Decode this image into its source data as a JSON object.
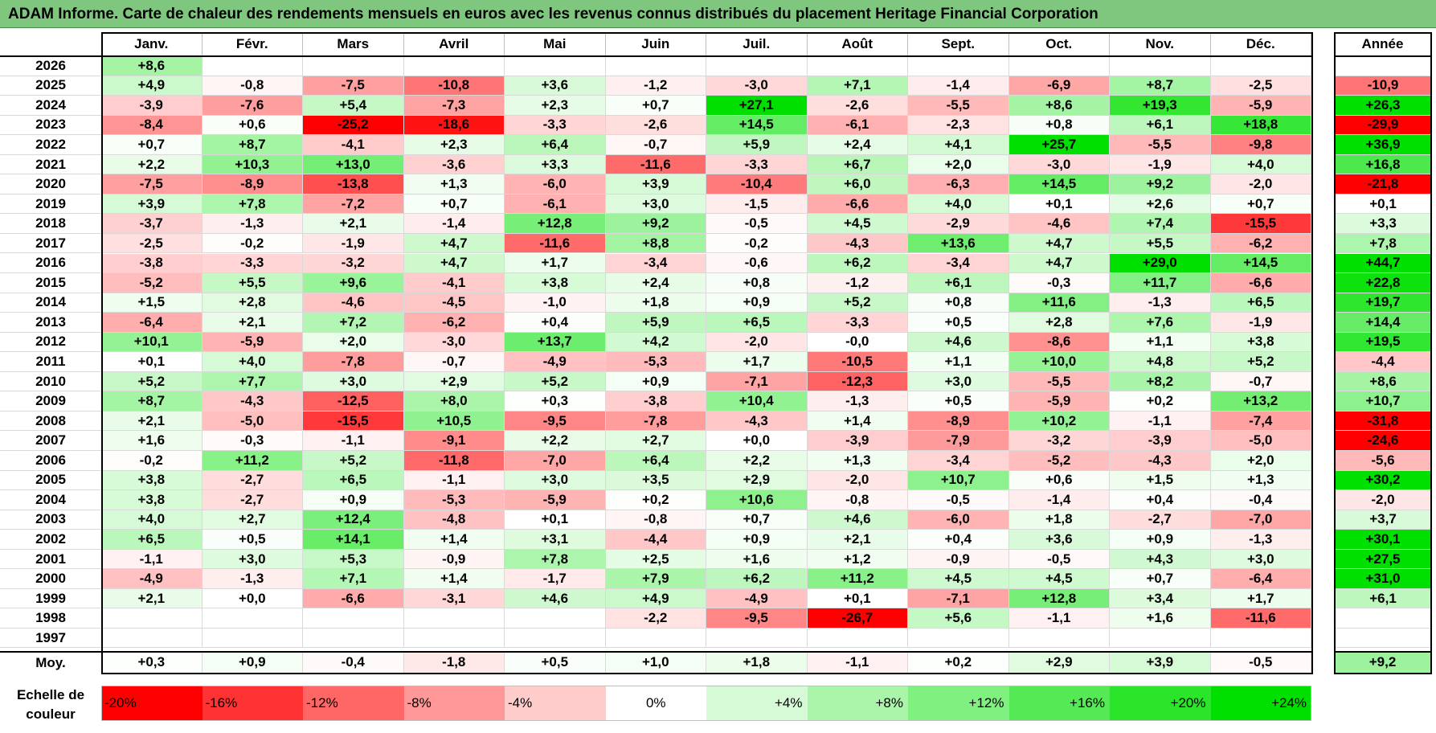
{
  "title": "ADAM Informe. Carte de chaleur des rendements mensuels en euros avec les revenus connus distribués du placement Heritage Financial Corporation",
  "chart_data": {
    "type": "heatmap",
    "title": "ADAM Informe. Carte de chaleur des rendements mensuels en euros avec les revenus connus distribués du placement Heritage Financial Corporation",
    "months": [
      "Janv.",
      "Févr.",
      "Mars",
      "Avril",
      "Mai",
      "Juin",
      "Juil.",
      "Août",
      "Sept.",
      "Oct.",
      "Nov.",
      "Déc."
    ],
    "year_header": "Année",
    "rows": [
      {
        "year": "2026",
        "values": [
          "+8,6",
          "",
          "",
          "",
          "",
          "",
          "",
          "",
          "",
          "",
          "",
          ""
        ],
        "annual": ""
      },
      {
        "year": "2025",
        "values": [
          "+4,9",
          "-0,8",
          "-7,5",
          "-10,8",
          "+3,6",
          "-1,2",
          "-3,0",
          "+7,1",
          "-1,4",
          "-6,9",
          "+8,7",
          "-2,5"
        ],
        "annual": "-10,9"
      },
      {
        "year": "2024",
        "values": [
          "-3,9",
          "-7,6",
          "+5,4",
          "-7,3",
          "+2,3",
          "+0,7",
          "+27,1",
          "-2,6",
          "-5,5",
          "+8,6",
          "+19,3",
          "-5,9"
        ],
        "annual": "+26,3"
      },
      {
        "year": "2023",
        "values": [
          "-8,4",
          "+0,6",
          "-25,2",
          "-18,6",
          "-3,3",
          "-2,6",
          "+14,5",
          "-6,1",
          "-2,3",
          "+0,8",
          "+6,1",
          "+18,8"
        ],
        "annual": "-29,9"
      },
      {
        "year": "2022",
        "values": [
          "+0,7",
          "+8,7",
          "-4,1",
          "+2,3",
          "+6,4",
          "-0,7",
          "+5,9",
          "+2,4",
          "+4,1",
          "+25,7",
          "-5,5",
          "-9,8"
        ],
        "annual": "+36,9"
      },
      {
        "year": "2021",
        "values": [
          "+2,2",
          "+10,3",
          "+13,0",
          "-3,6",
          "+3,3",
          "-11,6",
          "-3,3",
          "+6,7",
          "+2,0",
          "-3,0",
          "-1,9",
          "+4,0"
        ],
        "annual": "+16,8"
      },
      {
        "year": "2020",
        "values": [
          "-7,5",
          "-8,9",
          "-13,8",
          "+1,3",
          "-6,0",
          "+3,9",
          "-10,4",
          "+6,0",
          "-6,3",
          "+14,5",
          "+9,2",
          "-2,0"
        ],
        "annual": "-21,8"
      },
      {
        "year": "2019",
        "values": [
          "+3,9",
          "+7,8",
          "-7,2",
          "+0,7",
          "-6,1",
          "+3,0",
          "-1,5",
          "-6,6",
          "+4,0",
          "+0,1",
          "+2,6",
          "+0,7"
        ],
        "annual": "+0,1"
      },
      {
        "year": "2018",
        "values": [
          "-3,7",
          "-1,3",
          "+2,1",
          "-1,4",
          "+12,8",
          "+9,2",
          "-0,5",
          "+4,5",
          "-2,9",
          "-4,6",
          "+7,4",
          "-15,5"
        ],
        "annual": "+3,3"
      },
      {
        "year": "2017",
        "values": [
          "-2,5",
          "-0,2",
          "-1,9",
          "+4,7",
          "-11,6",
          "+8,8",
          "-0,2",
          "-4,3",
          "+13,6",
          "+4,7",
          "+5,5",
          "-6,2"
        ],
        "annual": "+7,8"
      },
      {
        "year": "2016",
        "values": [
          "-3,8",
          "-3,3",
          "-3,2",
          "+4,7",
          "+1,7",
          "-3,4",
          "-0,6",
          "+6,2",
          "-3,4",
          "+4,7",
          "+29,0",
          "+14,5"
        ],
        "annual": "+44,7"
      },
      {
        "year": "2015",
        "values": [
          "-5,2",
          "+5,5",
          "+9,6",
          "-4,1",
          "+3,8",
          "+2,4",
          "+0,8",
          "-1,2",
          "+6,1",
          "-0,3",
          "+11,7",
          "-6,6"
        ],
        "annual": "+22,8"
      },
      {
        "year": "2014",
        "values": [
          "+1,5",
          "+2,8",
          "-4,6",
          "-4,5",
          "-1,0",
          "+1,8",
          "+0,9",
          "+5,2",
          "+0,8",
          "+11,6",
          "-1,3",
          "+6,5"
        ],
        "annual": "+19,7"
      },
      {
        "year": "2013",
        "values": [
          "-6,4",
          "+2,1",
          "+7,2",
          "-6,2",
          "+0,4",
          "+5,9",
          "+6,5",
          "-3,3",
          "+0,5",
          "+2,8",
          "+7,6",
          "-1,9"
        ],
        "annual": "+14,4"
      },
      {
        "year": "2012",
        "values": [
          "+10,1",
          "-5,9",
          "+2,0",
          "-3,0",
          "+13,7",
          "+4,2",
          "-2,0",
          "-0,0",
          "+4,6",
          "-8,6",
          "+1,1",
          "+3,8"
        ],
        "annual": "+19,5"
      },
      {
        "year": "2011",
        "values": [
          "+0,1",
          "+4,0",
          "-7,8",
          "-0,7",
          "-4,9",
          "-5,3",
          "+1,7",
          "-10,5",
          "+1,1",
          "+10,0",
          "+4,8",
          "+5,2"
        ],
        "annual": "-4,4"
      },
      {
        "year": "2010",
        "values": [
          "+5,2",
          "+7,7",
          "+3,0",
          "+2,9",
          "+5,2",
          "+0,9",
          "-7,1",
          "-12,3",
          "+3,0",
          "-5,5",
          "+8,2",
          "-0,7"
        ],
        "annual": "+8,6"
      },
      {
        "year": "2009",
        "values": [
          "+8,7",
          "-4,3",
          "-12,5",
          "+8,0",
          "+0,3",
          "-3,8",
          "+10,4",
          "-1,3",
          "+0,5",
          "-5,9",
          "+0,2",
          "+13,2"
        ],
        "annual": "+10,7"
      },
      {
        "year": "2008",
        "values": [
          "+2,1",
          "-5,0",
          "-15,5",
          "+10,5",
          "-9,5",
          "-7,8",
          "-4,3",
          "+1,4",
          "-8,9",
          "+10,2",
          "-1,1",
          "-7,4"
        ],
        "annual": "-31,8"
      },
      {
        "year": "2007",
        "values": [
          "+1,6",
          "-0,3",
          "-1,1",
          "-9,1",
          "+2,2",
          "+2,7",
          "+0,0",
          "-3,9",
          "-7,9",
          "-3,2",
          "-3,9",
          "-5,0"
        ],
        "annual": "-24,6"
      },
      {
        "year": "2006",
        "values": [
          "-0,2",
          "+11,2",
          "+5,2",
          "-11,8",
          "-7,0",
          "+6,4",
          "+2,2",
          "+1,3",
          "-3,4",
          "-5,2",
          "-4,3",
          "+2,0"
        ],
        "annual": "-5,6"
      },
      {
        "year": "2005",
        "values": [
          "+3,8",
          "-2,7",
          "+6,5",
          "-1,1",
          "+3,0",
          "+3,5",
          "+2,9",
          "-2,0",
          "+10,7",
          "+0,6",
          "+1,5",
          "+1,3"
        ],
        "annual": "+30,2"
      },
      {
        "year": "2004",
        "values": [
          "+3,8",
          "-2,7",
          "+0,9",
          "-5,3",
          "-5,9",
          "+0,2",
          "+10,6",
          "-0,8",
          "-0,5",
          "-1,4",
          "+0,4",
          "-0,4"
        ],
        "annual": "-2,0"
      },
      {
        "year": "2003",
        "values": [
          "+4,0",
          "+2,7",
          "+12,4",
          "-4,8",
          "+0,1",
          "-0,8",
          "+0,7",
          "+4,6",
          "-6,0",
          "+1,8",
          "-2,7",
          "-7,0"
        ],
        "annual": "+3,7"
      },
      {
        "year": "2002",
        "values": [
          "+6,5",
          "+0,5",
          "+14,1",
          "+1,4",
          "+3,1",
          "-4,4",
          "+0,9",
          "+2,1",
          "+0,4",
          "+3,6",
          "+0,9",
          "-1,3"
        ],
        "annual": "+30,1"
      },
      {
        "year": "2001",
        "values": [
          "-1,1",
          "+3,0",
          "+5,3",
          "-0,9",
          "+7,8",
          "+2,5",
          "+1,6",
          "+1,2",
          "-0,9",
          "-0,5",
          "+4,3",
          "+3,0"
        ],
        "annual": "+27,5"
      },
      {
        "year": "2000",
        "values": [
          "-4,9",
          "-1,3",
          "+7,1",
          "+1,4",
          "-1,7",
          "+7,9",
          "+6,2",
          "+11,2",
          "+4,5",
          "+4,5",
          "+0,7",
          "-6,4"
        ],
        "annual": "+31,0"
      },
      {
        "year": "1999",
        "values": [
          "+2,1",
          "+0,0",
          "-6,6",
          "-3,1",
          "+4,6",
          "+4,9",
          "-4,9",
          "+0,1",
          "-7,1",
          "+12,8",
          "+3,4",
          "+1,7"
        ],
        "annual": "+6,1"
      },
      {
        "year": "1998",
        "values": [
          "",
          "",
          "",
          "",
          "",
          "-2,2",
          "-9,5",
          "-26,7",
          "+5,6",
          "-1,1",
          "+1,6",
          "-11,6"
        ],
        "annual": ""
      },
      {
        "year": "1997",
        "values": [
          "",
          "",
          "",
          "",
          "",
          "",
          "",
          "",
          "",
          "",
          "",
          ""
        ],
        "annual": ""
      }
    ],
    "average": {
      "label": "Moy.",
      "values": [
        "+0,3",
        "+0,9",
        "-0,4",
        "-1,8",
        "+0,5",
        "+1,0",
        "+1,8",
        "-1,1",
        "+0,2",
        "+2,9",
        "+3,9",
        "-0,5"
      ],
      "annual": "+9,2"
    },
    "scale": {
      "label": "Echelle de couleur",
      "values": [
        -20,
        -16,
        -12,
        -8,
        -4,
        0,
        4,
        8,
        12,
        16,
        20,
        24
      ],
      "labels": [
        "-20%",
        "-16%",
        "-12%",
        "-8%",
        "-4%",
        "0%",
        "+4%",
        "+8%",
        "+12%",
        "+16%",
        "+20%",
        "+24%"
      ]
    },
    "colors": {
      "negative": "#ff0000",
      "positive": "#00e000",
      "neutral": "#ffffff",
      "title_bg": "#7fc77f"
    }
  }
}
